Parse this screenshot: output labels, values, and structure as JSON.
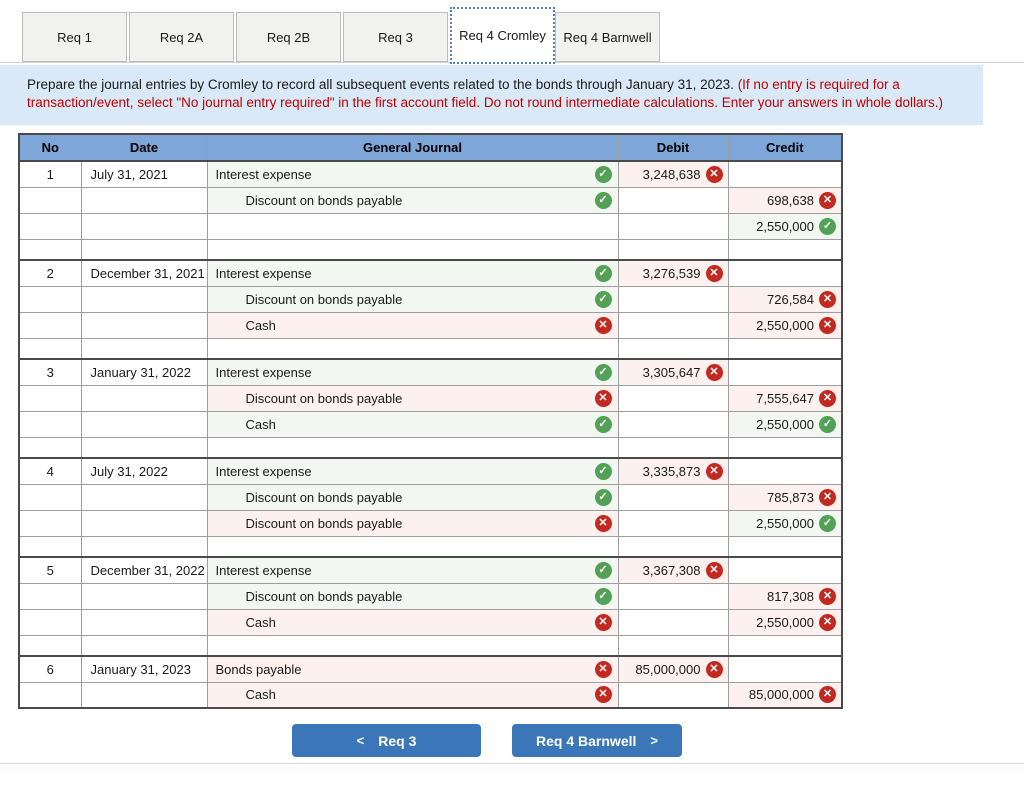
{
  "tabs": {
    "items": [
      {
        "label": "Req 1",
        "active": false
      },
      {
        "label": "Req 2A",
        "active": false
      },
      {
        "label": "Req 2B",
        "active": false
      },
      {
        "label": "Req 3",
        "active": false
      },
      {
        "label": "Req 4 Cromley",
        "active": true
      },
      {
        "label": "Req 4 Barnwell",
        "active": false
      }
    ]
  },
  "instruction": {
    "black": "Prepare the journal entries by Cromley to record all subsequent events related to the bonds through January 31, 2023. ",
    "red": "(If no entry is required for a transaction/event, select \"No journal entry required\" in the first account field. Do not round intermediate calculations.  Enter your answers in whole dollars.)"
  },
  "table": {
    "headers": {
      "no": "No",
      "date": "Date",
      "journal": "General Journal",
      "debit": "Debit",
      "credit": "Credit"
    },
    "entries": [
      {
        "no": "1",
        "date": "July 31, 2021",
        "spacer": true,
        "lines": [
          {
            "account": "Interest expense",
            "indent": false,
            "account_status": "correct",
            "debit": "3,248,638",
            "debit_status": "incorrect",
            "credit": "",
            "credit_status": ""
          },
          {
            "account": "Discount on bonds payable",
            "indent": true,
            "account_status": "correct",
            "debit": "",
            "debit_status": "",
            "credit": "698,638",
            "credit_status": "incorrect"
          },
          {
            "account": "",
            "indent": true,
            "account_status": "",
            "debit": "",
            "debit_status": "",
            "credit": "2,550,000",
            "credit_status": "correct"
          }
        ]
      },
      {
        "no": "2",
        "date": "December 31, 2021",
        "spacer": true,
        "lines": [
          {
            "account": "Interest expense",
            "indent": false,
            "account_status": "correct",
            "debit": "3,276,539",
            "debit_status": "incorrect",
            "credit": "",
            "credit_status": ""
          },
          {
            "account": "Discount on bonds payable",
            "indent": true,
            "account_status": "correct",
            "debit": "",
            "debit_status": "",
            "credit": "726,584",
            "credit_status": "incorrect"
          },
          {
            "account": "Cash",
            "indent": true,
            "account_status": "incorrect",
            "debit": "",
            "debit_status": "",
            "credit": "2,550,000",
            "credit_status": "incorrect"
          }
        ]
      },
      {
        "no": "3",
        "date": "January 31, 2022",
        "spacer": true,
        "lines": [
          {
            "account": "Interest expense",
            "indent": false,
            "account_status": "correct",
            "debit": "3,305,647",
            "debit_status": "incorrect",
            "credit": "",
            "credit_status": ""
          },
          {
            "account": "Discount on bonds payable",
            "indent": true,
            "account_status": "incorrect",
            "debit": "",
            "debit_status": "",
            "credit": "7,555,647",
            "credit_status": "incorrect"
          },
          {
            "account": "Cash",
            "indent": true,
            "account_status": "correct",
            "debit": "",
            "debit_status": "",
            "credit": "2,550,000",
            "credit_status": "correct"
          }
        ]
      },
      {
        "no": "4",
        "date": "July 31, 2022",
        "spacer": true,
        "lines": [
          {
            "account": "Interest expense",
            "indent": false,
            "account_status": "correct",
            "debit": "3,335,873",
            "debit_status": "incorrect",
            "credit": "",
            "credit_status": ""
          },
          {
            "account": "Discount on bonds payable",
            "indent": true,
            "account_status": "correct",
            "debit": "",
            "debit_status": "",
            "credit": "785,873",
            "credit_status": "incorrect"
          },
          {
            "account": "Discount on bonds payable",
            "indent": true,
            "account_status": "incorrect",
            "debit": "",
            "debit_status": "",
            "credit": "2,550,000",
            "credit_status": "correct"
          }
        ]
      },
      {
        "no": "5",
        "date": "December 31, 2022",
        "spacer": true,
        "lines": [
          {
            "account": "Interest expense",
            "indent": false,
            "account_status": "correct",
            "debit": "3,367,308",
            "debit_status": "incorrect",
            "credit": "",
            "credit_status": ""
          },
          {
            "account": "Discount on bonds payable",
            "indent": true,
            "account_status": "correct",
            "debit": "",
            "debit_status": "",
            "credit": "817,308",
            "credit_status": "incorrect"
          },
          {
            "account": "Cash",
            "indent": true,
            "account_status": "incorrect",
            "debit": "",
            "debit_status": "",
            "credit": "2,550,000",
            "credit_status": "incorrect"
          }
        ]
      },
      {
        "no": "6",
        "date": "January 31, 2023",
        "spacer": false,
        "lines": [
          {
            "account": "Bonds payable",
            "indent": false,
            "account_status": "incorrect",
            "debit": "85,000,000",
            "debit_status": "incorrect",
            "credit": "",
            "credit_status": ""
          },
          {
            "account": "Cash",
            "indent": true,
            "account_status": "incorrect",
            "debit": "",
            "debit_status": "",
            "credit": "85,000,000",
            "credit_status": "incorrect"
          }
        ]
      }
    ]
  },
  "footer_nav": {
    "prev_chevron": "<",
    "prev_label": "Req 3",
    "next_label": "Req 4 Barnwell",
    "next_chevron": ">"
  },
  "icons": {
    "correct_glyph": "✓",
    "incorrect_glyph": "✕"
  },
  "colors": {
    "header_blue": "#7ea6d9",
    "instruction_bg": "#d9e9f7",
    "instruction_red_text": "#c00000",
    "button_blue": "#3a76b8",
    "correct_green": "#52a156",
    "incorrect_red": "#c22a21",
    "correct_cell_bg": "#f3f7f2",
    "incorrect_cell_bg": "#fdf1ef"
  }
}
